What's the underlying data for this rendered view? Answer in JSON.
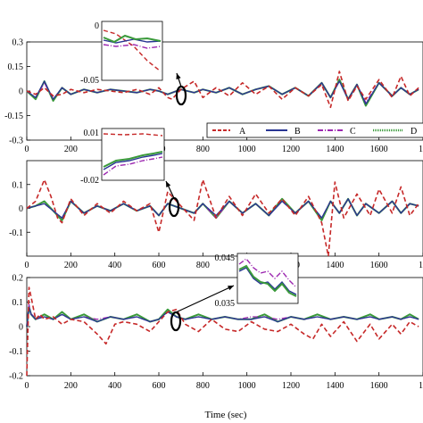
{
  "chart_data": [
    {
      "type": "line",
      "xlabel": "",
      "ylabel": "",
      "xlim": [
        0,
        1800
      ],
      "ylim": [
        -0.3,
        0.3
      ],
      "xticks": [
        "0",
        "200",
        "400",
        "600",
        "800",
        "1000",
        "1200",
        "1400",
        "1600",
        "1"
      ],
      "yticks": [
        "0.3",
        "0.15",
        "0",
        "-0.15",
        "-0.3"
      ],
      "legend": {
        "position": "bottom-right",
        "entries": [
          "A",
          "B",
          "C",
          "D"
        ]
      },
      "series": [
        {
          "name": "A",
          "x": [
            0,
            40,
            80,
            120,
            160,
            200,
            260,
            320,
            380,
            440,
            500,
            560,
            600,
            640,
            660,
            700,
            760,
            800,
            860,
            920,
            980,
            1040,
            1100,
            1160,
            1220,
            1280,
            1340,
            1380,
            1420,
            1460,
            1500,
            1540,
            1600,
            1660,
            1700,
            1740,
            1780
          ],
          "y": [
            0,
            -0.02,
            0.02,
            -0.03,
            -0.02,
            0.01,
            -0.01,
            0.01,
            0,
            -0.01,
            0.01,
            -0.02,
            0.02,
            -0.04,
            -0.05,
            0.01,
            0.06,
            -0.04,
            0.02,
            -0.03,
            0.05,
            -0.02,
            0.03,
            -0.05,
            0.02,
            -0.03,
            0.04,
            -0.1,
            0.12,
            -0.06,
            0.03,
            -0.05,
            0.07,
            -0.04,
            0.09,
            -0.03,
            0.02
          ]
        },
        {
          "name": "B",
          "x": [
            0,
            40,
            80,
            120,
            160,
            200,
            260,
            320,
            380,
            440,
            500,
            560,
            600,
            640,
            700,
            760,
            800,
            860,
            920,
            980,
            1040,
            1100,
            1160,
            1220,
            1280,
            1340,
            1380,
            1420,
            1460,
            1500,
            1540,
            1600,
            1660,
            1700,
            1740,
            1780
          ],
          "y": [
            0,
            -0.04,
            0.06,
            -0.05,
            0.02,
            -0.02,
            0.01,
            -0.01,
            0.01,
            0,
            -0.01,
            0.01,
            0,
            -0.02,
            0.01,
            -0.01,
            0.01,
            -0.01,
            0.02,
            -0.02,
            0.01,
            0.03,
            -0.02,
            0.02,
            -0.03,
            0.05,
            -0.04,
            0.06,
            -0.05,
            0.04,
            -0.08,
            0.05,
            -0.03,
            0.02,
            -0.02,
            0.01
          ]
        },
        {
          "name": "C",
          "x": [
            0,
            40,
            80,
            120,
            160,
            200,
            260,
            320,
            380,
            440,
            500,
            560,
            600,
            640,
            700,
            760,
            800,
            860,
            920,
            980,
            1040,
            1100,
            1160,
            1220,
            1280,
            1340,
            1380,
            1420,
            1460,
            1500,
            1540,
            1600,
            1660,
            1700,
            1740,
            1780
          ],
          "y": [
            0,
            -0.04,
            0.05,
            -0.05,
            0.02,
            -0.02,
            0.01,
            -0.01,
            0.01,
            0,
            -0.01,
            0.01,
            0,
            -0.02,
            0.01,
            -0.01,
            0.01,
            -0.01,
            0.02,
            -0.02,
            0.01,
            0.03,
            -0.02,
            0.02,
            -0.03,
            0.05,
            -0.04,
            0.06,
            -0.05,
            0.04,
            -0.07,
            0.05,
            -0.03,
            0.02,
            -0.02,
            0.01
          ]
        },
        {
          "name": "D",
          "x": [
            0,
            40,
            80,
            120,
            160,
            200,
            260,
            320,
            380,
            440,
            500,
            560,
            600,
            640,
            700,
            760,
            800,
            860,
            920,
            980,
            1040,
            1100,
            1160,
            1220,
            1280,
            1340,
            1380,
            1420,
            1460,
            1500,
            1540,
            1600,
            1660,
            1700,
            1740,
            1780
          ],
          "y": [
            0,
            -0.05,
            0.06,
            -0.06,
            0.02,
            -0.02,
            0.01,
            -0.01,
            0.01,
            0,
            -0.01,
            0.01,
            0,
            -0.02,
            0.01,
            -0.01,
            0.01,
            -0.01,
            0.02,
            -0.02,
            0.01,
            0.03,
            -0.02,
            0.02,
            -0.03,
            0.05,
            -0.04,
            0.07,
            -0.05,
            0.04,
            -0.09,
            0.05,
            -0.03,
            0.02,
            -0.02,
            0.01
          ]
        }
      ],
      "inset": {
        "yticks": [
          "0",
          "-0.05"
        ]
      }
    },
    {
      "type": "line",
      "xlabel": "",
      "ylabel": "",
      "xlim": [
        0,
        1800
      ],
      "ylim": [
        -0.2,
        0.2
      ],
      "xticks": [
        "0",
        "200",
        "400",
        "600",
        "800",
        "1000",
        "1200",
        "1400",
        "1600",
        "1"
      ],
      "yticks": [
        "0.1",
        "0",
        "-0.1"
      ],
      "series": [
        {
          "name": "A",
          "x": [
            0,
            40,
            80,
            110,
            140,
            160,
            200,
            260,
            320,
            380,
            440,
            500,
            560,
            600,
            640,
            700,
            760,
            800,
            860,
            920,
            980,
            1040,
            1100,
            1160,
            1220,
            1280,
            1340,
            1370,
            1400,
            1440,
            1500,
            1560,
            1600,
            1660,
            1700,
            1740,
            1780
          ],
          "y": [
            0,
            0.03,
            0.12,
            0.05,
            -0.04,
            -0.06,
            0.04,
            -0.03,
            0.02,
            -0.02,
            0.03,
            -0.01,
            0.02,
            -0.1,
            0.07,
            0.01,
            -0.05,
            0.12,
            -0.04,
            0.05,
            -0.03,
            0.06,
            -0.02,
            0.04,
            -0.03,
            0.05,
            -0.06,
            -0.2,
            0.11,
            -0.04,
            0.06,
            -0.03,
            0.08,
            -0.02,
            0.09,
            -0.03,
            0.02
          ]
        },
        {
          "name": "B",
          "x": [
            0,
            40,
            80,
            120,
            160,
            200,
            260,
            320,
            380,
            440,
            500,
            560,
            600,
            640,
            700,
            760,
            800,
            860,
            920,
            980,
            1040,
            1100,
            1160,
            1220,
            1280,
            1340,
            1380,
            1420,
            1460,
            1500,
            1540,
            1600,
            1660,
            1700,
            1740,
            1780
          ],
          "y": [
            0,
            0.01,
            0.02,
            -0.01,
            -0.04,
            0.03,
            -0.02,
            0.01,
            -0.01,
            0.02,
            -0.01,
            0.01,
            -0.03,
            0.02,
            0,
            -0.02,
            0.02,
            -0.03,
            0.03,
            -0.02,
            0.02,
            -0.03,
            0.03,
            -0.02,
            0.03,
            -0.04,
            0.03,
            -0.02,
            0.04,
            -0.03,
            0.02,
            -0.02,
            0.03,
            -0.02,
            0.02,
            0.01
          ]
        },
        {
          "name": "C",
          "x": [
            0,
            40,
            80,
            120,
            160,
            200,
            260,
            320,
            380,
            440,
            500,
            560,
            600,
            640,
            700,
            760,
            800,
            860,
            920,
            980,
            1040,
            1100,
            1160,
            1220,
            1280,
            1340,
            1380,
            1420,
            1460,
            1500,
            1540,
            1600,
            1660,
            1700,
            1740,
            1780
          ],
          "y": [
            0,
            0.01,
            0.02,
            -0.01,
            -0.04,
            0.03,
            -0.02,
            0.01,
            -0.01,
            0.02,
            -0.01,
            0.01,
            -0.03,
            0.02,
            0,
            -0.02,
            0.02,
            -0.04,
            0.03,
            -0.02,
            0.02,
            -0.03,
            0.03,
            -0.02,
            0.03,
            -0.04,
            0.03,
            -0.02,
            0.04,
            -0.03,
            0.02,
            -0.02,
            0.03,
            -0.02,
            0.02,
            0.01
          ]
        },
        {
          "name": "D",
          "x": [
            0,
            40,
            80,
            120,
            160,
            200,
            260,
            320,
            380,
            440,
            500,
            560,
            600,
            640,
            700,
            760,
            800,
            860,
            920,
            980,
            1040,
            1100,
            1160,
            1220,
            1280,
            1340,
            1380,
            1420,
            1460,
            1500,
            1540,
            1600,
            1660,
            1700,
            1740,
            1780
          ],
          "y": [
            0,
            0.01,
            0.03,
            -0.01,
            -0.05,
            0.03,
            -0.02,
            0.01,
            -0.01,
            0.02,
            -0.01,
            0.01,
            -0.03,
            0.02,
            0,
            -0.02,
            0.02,
            -0.04,
            0.03,
            -0.02,
            0.02,
            -0.03,
            0.04,
            -0.02,
            0.03,
            -0.05,
            0.03,
            -0.02,
            0.04,
            -0.03,
            0.02,
            -0.02,
            0.03,
            -0.02,
            0.02,
            0.01
          ]
        }
      ],
      "inset": {
        "yticks": [
          "0.01",
          "-0.02"
        ]
      }
    },
    {
      "type": "line",
      "xlabel": "Time (sec)",
      "ylabel": "",
      "xlim": [
        0,
        1800
      ],
      "ylim": [
        -0.2,
        0.2
      ],
      "xticks": [
        "0",
        "200",
        "400",
        "600",
        "800",
        "1000",
        "1200",
        "1400",
        "1600",
        "1"
      ],
      "yticks": [
        "0.2",
        "0.1",
        "0",
        "-0.1",
        "-0.2"
      ],
      "series": [
        {
          "name": "A",
          "x": [
            0,
            10,
            20,
            40,
            60,
            80,
            120,
            160,
            200,
            260,
            320,
            360,
            400,
            440,
            500,
            560,
            600,
            640,
            680,
            720,
            780,
            840,
            900,
            960,
            1020,
            1080,
            1140,
            1200,
            1260,
            1300,
            1340,
            1380,
            1440,
            1500,
            1560,
            1600,
            1660,
            1700,
            1740,
            1780
          ],
          "y": [
            -0.2,
            0.16,
            0.12,
            0.03,
            0.05,
            0.03,
            0.04,
            0.01,
            0.03,
            0.02,
            -0.03,
            -0.07,
            0.01,
            0.02,
            0.01,
            -0.02,
            0.02,
            0.06,
            0.07,
            0.01,
            -0.02,
            0.03,
            -0.01,
            -0.02,
            0.02,
            -0.01,
            -0.02,
            0.01,
            -0.03,
            -0.05,
            0.01,
            -0.04,
            0.02,
            -0.06,
            0.01,
            -0.05,
            0.01,
            -0.03,
            0.02,
            0
          ]
        },
        {
          "name": "B",
          "x": [
            0,
            10,
            20,
            40,
            80,
            120,
            160,
            200,
            260,
            320,
            380,
            440,
            500,
            560,
            600,
            640,
            680,
            720,
            780,
            840,
            900,
            960,
            1020,
            1080,
            1140,
            1200,
            1260,
            1320,
            1380,
            1440,
            1500,
            1560,
            1600,
            1660,
            1700,
            1740,
            1780
          ],
          "y": [
            0,
            0.08,
            0.05,
            0.03,
            0.04,
            0.03,
            0.05,
            0.03,
            0.04,
            0.02,
            0.04,
            0.03,
            0.04,
            0.02,
            0.03,
            0.06,
            0.04,
            0.03,
            0.04,
            0.03,
            0.04,
            0.03,
            0.03,
            0.04,
            0.02,
            0.04,
            0.03,
            0.04,
            0.03,
            0.04,
            0.03,
            0.04,
            0.03,
            0.04,
            0.03,
            0.04,
            0.03
          ]
        },
        {
          "name": "C",
          "x": [
            0,
            10,
            20,
            40,
            80,
            120,
            160,
            200,
            260,
            320,
            380,
            440,
            500,
            560,
            600,
            640,
            680,
            720,
            780,
            840,
            900,
            960,
            1020,
            1080,
            1140,
            1200,
            1260,
            1320,
            1380,
            1440,
            1500,
            1560,
            1600,
            1660,
            1700,
            1740,
            1780
          ],
          "y": [
            0,
            0.09,
            0.05,
            0.04,
            0.04,
            0.03,
            0.05,
            0.03,
            0.04,
            0.03,
            0.04,
            0.03,
            0.04,
            0.02,
            0.03,
            0.06,
            0.04,
            0.03,
            0.04,
            0.03,
            0.04,
            0.03,
            0.04,
            0.04,
            0.03,
            0.04,
            0.03,
            0.04,
            0.03,
            0.04,
            0.03,
            0.04,
            0.03,
            0.04,
            0.03,
            0.04,
            0.03
          ]
        },
        {
          "name": "D",
          "x": [
            0,
            10,
            20,
            40,
            80,
            120,
            160,
            200,
            260,
            320,
            380,
            440,
            500,
            560,
            600,
            640,
            680,
            720,
            780,
            840,
            900,
            960,
            1020,
            1080,
            1140,
            1200,
            1260,
            1320,
            1380,
            1440,
            1500,
            1560,
            1600,
            1660,
            1700,
            1740,
            1780
          ],
          "y": [
            0,
            0.08,
            0.05,
            0.03,
            0.05,
            0.03,
            0.06,
            0.03,
            0.05,
            0.02,
            0.04,
            0.03,
            0.05,
            0.02,
            0.03,
            0.07,
            0.04,
            0.03,
            0.05,
            0.03,
            0.04,
            0.03,
            0.03,
            0.05,
            0.02,
            0.04,
            0.03,
            0.05,
            0.03,
            0.04,
            0.03,
            0.05,
            0.03,
            0.04,
            0.03,
            0.05,
            0.03
          ]
        }
      ],
      "inset": {
        "yticks": [
          "0.045",
          "0.035"
        ]
      }
    }
  ],
  "colors": {
    "A": "#c62828",
    "B": "#283593",
    "C": "#9c27b0",
    "D": "#3a9a3a"
  }
}
